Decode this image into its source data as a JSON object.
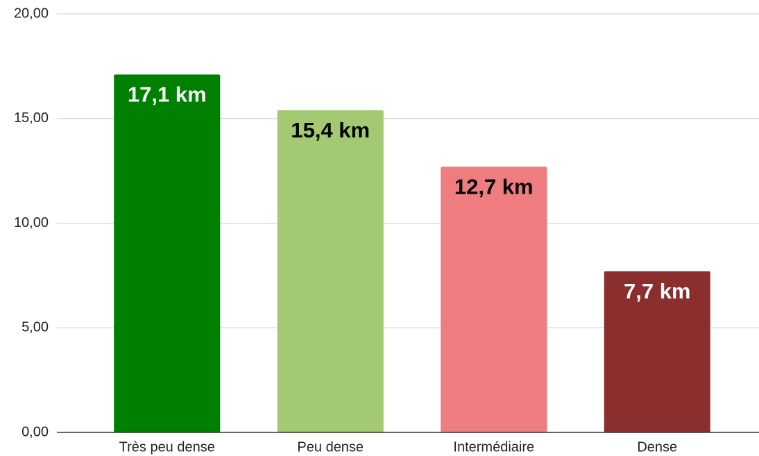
{
  "chart_data": {
    "type": "bar",
    "categories": [
      "Très peu dense",
      "Peu dense",
      "Intermédiaire",
      "Dense"
    ],
    "values": [
      17.1,
      15.4,
      12.7,
      7.7
    ],
    "value_labels": [
      "17,1 km",
      "15,4 km",
      "12,7 km",
      "7,7 km"
    ],
    "colors": [
      "#008000",
      "#a3c972",
      "#ef7d80",
      "#8b2e2e"
    ],
    "label_colors": [
      "#ffffff",
      "#000000",
      "#000000",
      "#ffffff"
    ],
    "ylim": [
      0,
      20
    ],
    "yticks": [
      {
        "value": 0,
        "label": "0,00"
      },
      {
        "value": 5,
        "label": "5,00"
      },
      {
        "value": 10,
        "label": "10,00"
      },
      {
        "value": 15,
        "label": "15,00"
      },
      {
        "value": 20,
        "label": "20,00"
      }
    ],
    "grid": true
  }
}
